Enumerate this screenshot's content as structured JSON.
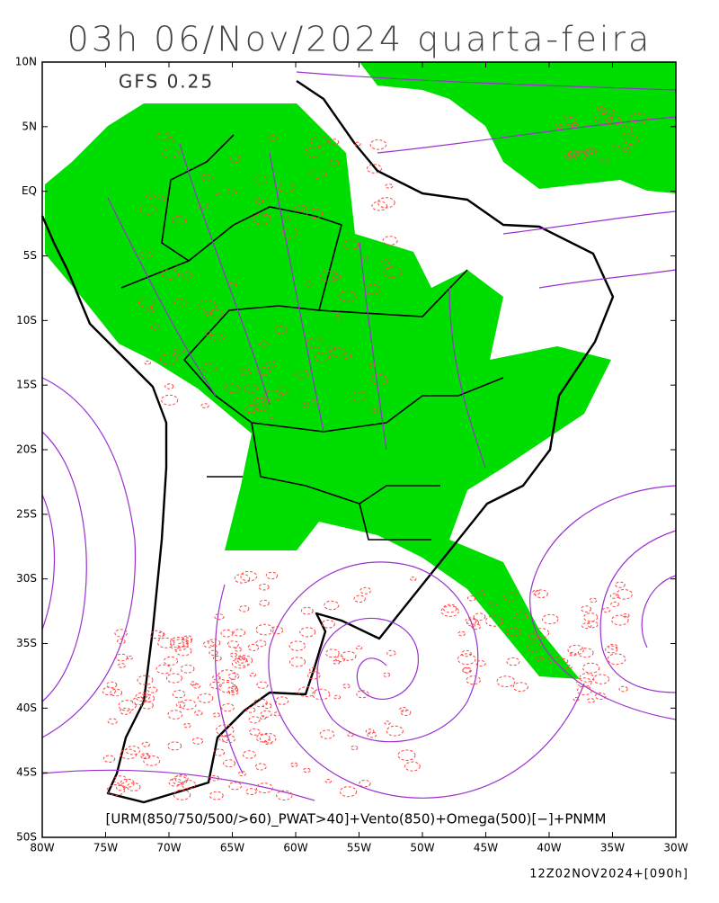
{
  "header": {
    "title": "03h 06/Nov/2024 quarta-feira"
  },
  "model_label": "GFS 0.25",
  "lat_labels": [
    "10N",
    "5N",
    "EQ",
    "5S",
    "10S",
    "15S",
    "20S",
    "25S",
    "30S",
    "35S",
    "40S",
    "45S",
    "50S"
  ],
  "lon_labels": [
    "80W",
    "75W",
    "70W",
    "65W",
    "60W",
    "55W",
    "50W",
    "45W",
    "40W",
    "35W",
    "30W"
  ],
  "caption": "[URM(850/750/500/>60)_PWAT>40]+Vento(850)+Omega(500)[−]+PNMM",
  "footer": "12Z02NOV2024+[090h]"
}
